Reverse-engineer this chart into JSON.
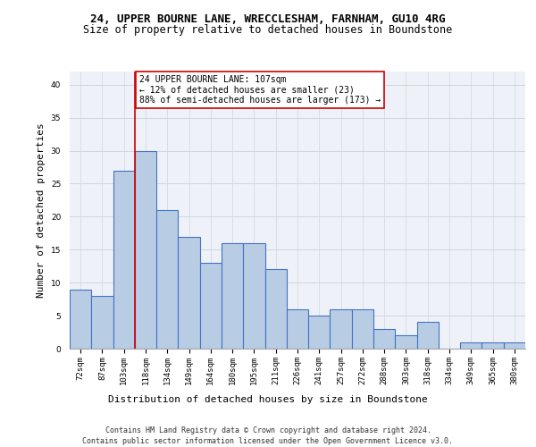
{
  "title_line1": "24, UPPER BOURNE LANE, WRECCLESHAM, FARNHAM, GU10 4RG",
  "title_line2": "Size of property relative to detached houses in Boundstone",
  "xlabel": "Distribution of detached houses by size in Boundstone",
  "ylabel": "Number of detached properties",
  "categories": [
    "72sqm",
    "87sqm",
    "103sqm",
    "118sqm",
    "134sqm",
    "149sqm",
    "164sqm",
    "180sqm",
    "195sqm",
    "211sqm",
    "226sqm",
    "241sqm",
    "257sqm",
    "272sqm",
    "288sqm",
    "303sqm",
    "318sqm",
    "334sqm",
    "349sqm",
    "365sqm",
    "380sqm"
  ],
  "values": [
    9,
    8,
    27,
    30,
    21,
    17,
    13,
    16,
    16,
    12,
    6,
    5,
    6,
    6,
    3,
    2,
    4,
    0,
    1,
    1,
    1
  ],
  "bar_color": "#b8cce4",
  "bar_edge_color": "#4472c4",
  "bar_edge_width": 0.8,
  "vline_x": 2.5,
  "vline_color": "#cc0000",
  "annotation_text": "24 UPPER BOURNE LANE: 107sqm\n← 12% of detached houses are smaller (23)\n88% of semi-detached houses are larger (173) →",
  "annotation_box_color": "#ffffff",
  "annotation_box_edge": "#cc0000",
  "ylim": [
    0,
    42
  ],
  "yticks": [
    0,
    5,
    10,
    15,
    20,
    25,
    30,
    35,
    40
  ],
  "grid_color": "#cdd5e5",
  "bg_color": "#eef2f8",
  "footer_line1": "Contains HM Land Registry data © Crown copyright and database right 2024.",
  "footer_line2": "Contains public sector information licensed under the Open Government Licence v3.0.",
  "title_fontsize": 9,
  "subtitle_fontsize": 8.5,
  "xlabel_fontsize": 8,
  "ylabel_fontsize": 8,
  "tick_fontsize": 6.5,
  "annotation_fontsize": 7,
  "footer_fontsize": 6
}
